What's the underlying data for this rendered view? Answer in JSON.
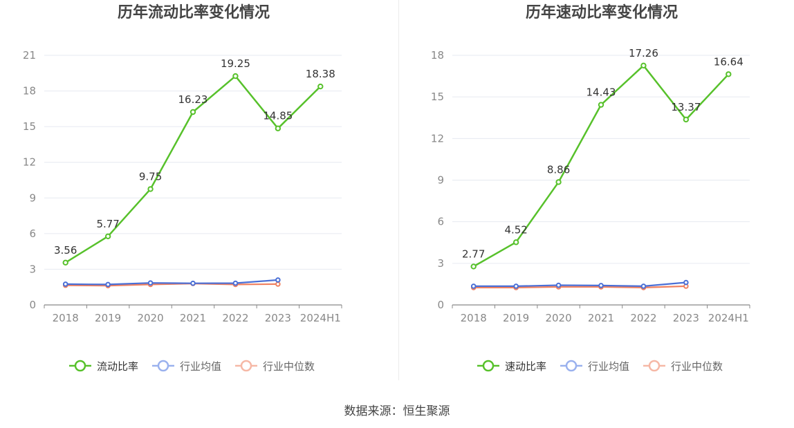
{
  "colors": {
    "main": "#57c12b",
    "avg": "#4a6fd6",
    "median": "#f08160",
    "legend_avg": "#9ab1ee",
    "legend_median": "#f6b8a6",
    "grid": "#e6e9f0",
    "axis": "#888888",
    "label": "#333333"
  },
  "source_text": "数据来源：恒生聚源",
  "chart_data": [
    {
      "type": "line",
      "title": "历年流动比率变化情况",
      "categories": [
        "2018",
        "2019",
        "2020",
        "2021",
        "2022",
        "2023",
        "2024H1"
      ],
      "ylim": [
        0,
        21
      ],
      "yticks": [
        0,
        3,
        6,
        9,
        12,
        15,
        18,
        21
      ],
      "ytick_labels": [
        "0",
        "3",
        "6",
        "9",
        "12",
        "15",
        "18",
        "21"
      ],
      "grid": true,
      "legend_position": "bottom",
      "series": [
        {
          "name": "流动比率",
          "values": [
            3.56,
            5.77,
            9.75,
            16.23,
            19.25,
            14.85,
            18.38
          ],
          "data_labels": [
            "3.56",
            "5.77",
            "9.75",
            "16.23",
            "19.25",
            "14.85",
            "18.38"
          ]
        },
        {
          "name": "行业均值",
          "values": [
            1.75,
            1.72,
            1.85,
            1.82,
            1.83,
            2.1,
            null
          ]
        },
        {
          "name": "行业中位数",
          "values": [
            1.65,
            1.62,
            1.72,
            1.8,
            1.72,
            1.75,
            null
          ]
        }
      ]
    },
    {
      "type": "line",
      "title": "历年速动比率变化情况",
      "categories": [
        "2018",
        "2019",
        "2020",
        "2021",
        "2022",
        "2023",
        "2024H1"
      ],
      "ylim": [
        0,
        18
      ],
      "yticks": [
        0,
        3,
        6,
        9,
        12,
        15,
        18
      ],
      "ytick_labels": [
        "0",
        "3",
        "6",
        "9",
        "12",
        "15",
        "18"
      ],
      "grid": true,
      "legend_position": "bottom",
      "series": [
        {
          "name": "速动比率",
          "values": [
            2.77,
            4.52,
            8.86,
            14.43,
            17.26,
            13.37,
            16.64
          ],
          "data_labels": [
            "2.77",
            "4.52",
            "8.86",
            "14.43",
            "17.26",
            "13.37",
            "16.64"
          ]
        },
        {
          "name": "行业均值",
          "values": [
            1.35,
            1.35,
            1.42,
            1.4,
            1.35,
            1.62,
            null
          ]
        },
        {
          "name": "行业中位数",
          "values": [
            1.25,
            1.25,
            1.3,
            1.3,
            1.25,
            1.35,
            null
          ]
        }
      ]
    }
  ]
}
